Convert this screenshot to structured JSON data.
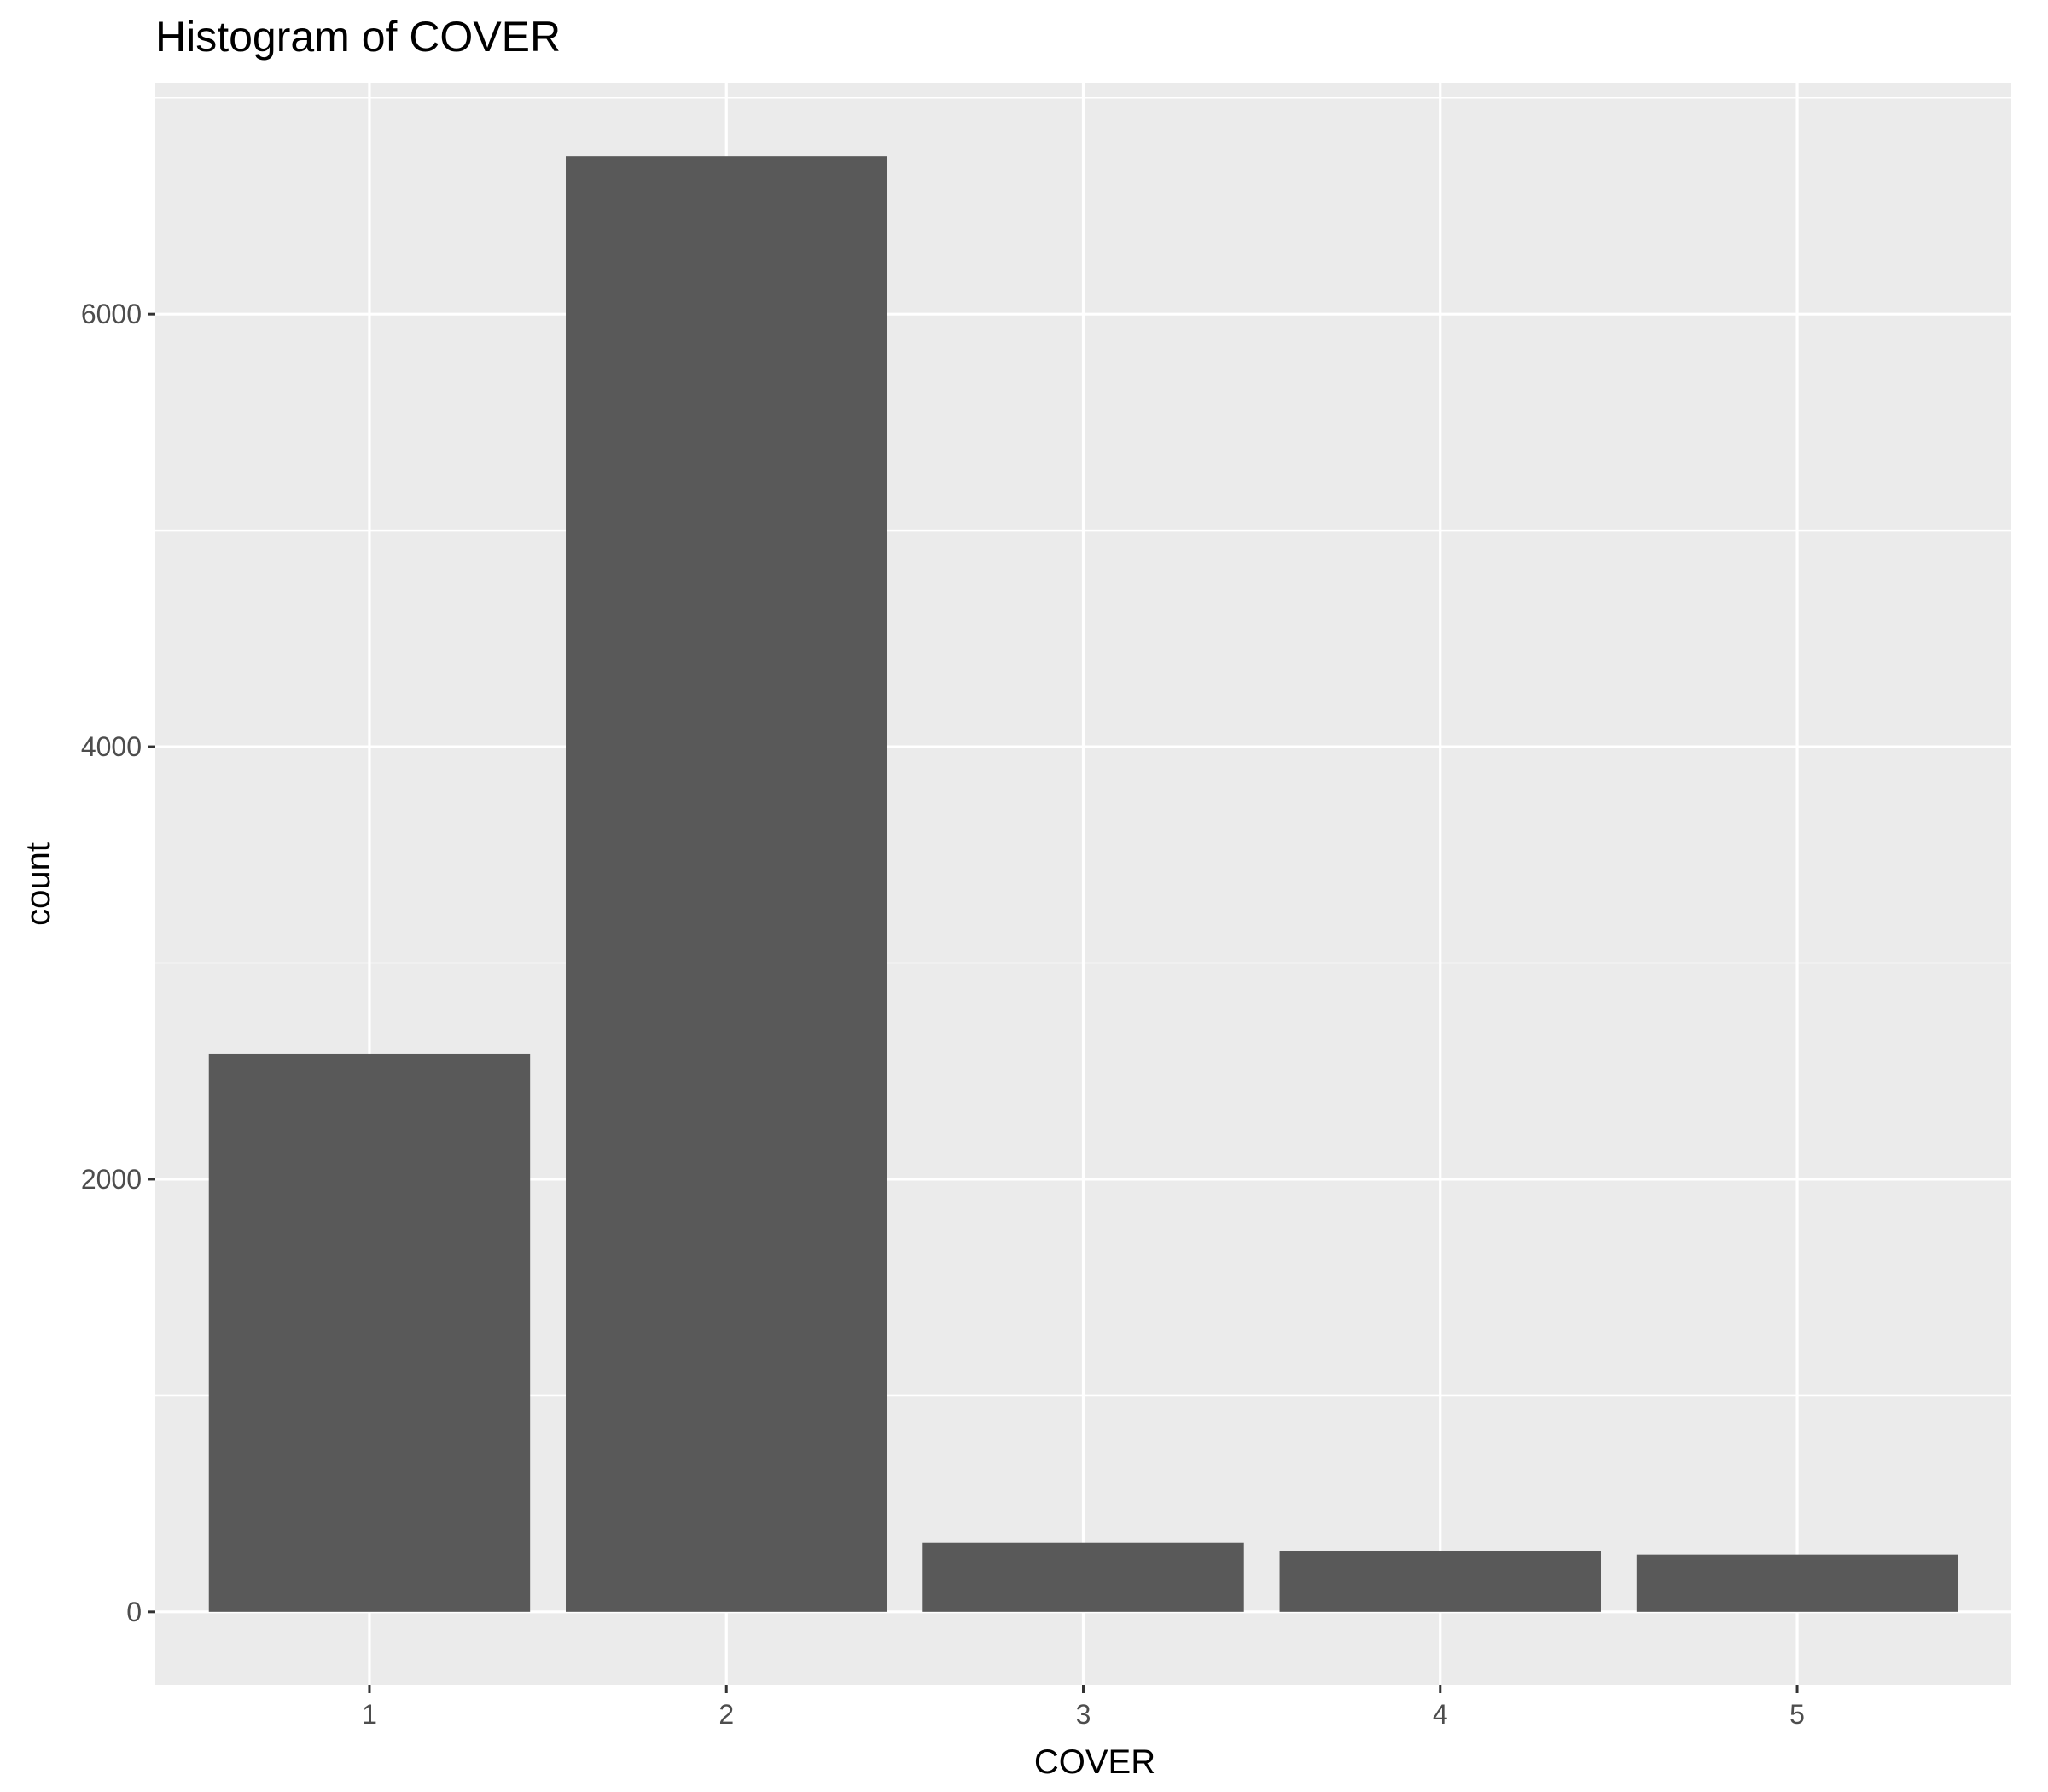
{
  "chart_data": {
    "type": "bar",
    "title": "Histogram of COVER",
    "xlabel": "COVER",
    "ylabel": "count",
    "categories": [
      "1",
      "2",
      "3",
      "4",
      "5"
    ],
    "values": [
      2580,
      6730,
      320,
      280,
      265
    ],
    "yticks": [
      0,
      2000,
      4000,
      6000
    ],
    "yticks_labels": [
      "0",
      "2000",
      "4000",
      "6000"
    ],
    "ylim": [
      -340,
      7070
    ],
    "grid": true,
    "legend": "none",
    "colors": {
      "bar": "#595959",
      "panel": "#ebebeb",
      "grid": "#ffffff",
      "tick_text": "#4d4d4d",
      "text": "#000000"
    }
  }
}
